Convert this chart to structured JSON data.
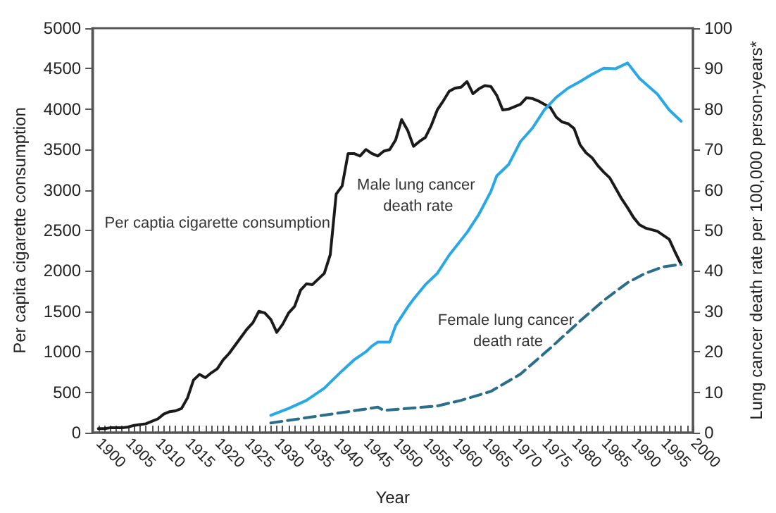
{
  "chart_data": {
    "type": "line",
    "xlabel": "Year",
    "ylabel": "Per capita cigarette consumption",
    "y2label": "Lung cancer death rate per 100,000 person-years*",
    "xlim": [
      1899,
      2000
    ],
    "xticks": [
      {
        "value": 1900,
        "label": "1900"
      },
      {
        "value": 1901,
        "label": null
      },
      {
        "value": 1902,
        "label": null
      },
      {
        "value": 1903,
        "label": null
      },
      {
        "value": 1904,
        "label": null
      },
      {
        "value": 1905,
        "label": "1905"
      },
      {
        "value": 1906,
        "label": null
      },
      {
        "value": 1907,
        "label": null
      },
      {
        "value": 1908,
        "label": null
      },
      {
        "value": 1909,
        "label": null
      },
      {
        "value": 1910,
        "label": "1910"
      },
      {
        "value": 1911,
        "label": null
      },
      {
        "value": 1912,
        "label": null
      },
      {
        "value": 1913,
        "label": null
      },
      {
        "value": 1914,
        "label": null
      },
      {
        "value": 1915,
        "label": "1915"
      },
      {
        "value": 1916,
        "label": null
      },
      {
        "value": 1917,
        "label": null
      },
      {
        "value": 1918,
        "label": null
      },
      {
        "value": 1919,
        "label": null
      },
      {
        "value": 1920,
        "label": "1920"
      },
      {
        "value": 1921,
        "label": null
      },
      {
        "value": 1922,
        "label": null
      },
      {
        "value": 1923,
        "label": null
      },
      {
        "value": 1924,
        "label": null
      },
      {
        "value": 1925,
        "label": "1925"
      },
      {
        "value": 1926,
        "label": null
      },
      {
        "value": 1927,
        "label": null
      },
      {
        "value": 1928,
        "label": null
      },
      {
        "value": 1929,
        "label": null
      },
      {
        "value": 1930,
        "label": "1930"
      },
      {
        "value": 1931,
        "label": null
      },
      {
        "value": 1932,
        "label": null
      },
      {
        "value": 1933,
        "label": null
      },
      {
        "value": 1934,
        "label": null
      },
      {
        "value": 1935,
        "label": "1935"
      },
      {
        "value": 1936,
        "label": null
      },
      {
        "value": 1937,
        "label": null
      },
      {
        "value": 1938,
        "label": null
      },
      {
        "value": 1939,
        "label": null
      },
      {
        "value": 1940,
        "label": "1940"
      },
      {
        "value": 1941,
        "label": null
      },
      {
        "value": 1942,
        "label": null
      },
      {
        "value": 1943,
        "label": null
      },
      {
        "value": 1944,
        "label": null
      },
      {
        "value": 1945,
        "label": "1945"
      },
      {
        "value": 1946,
        "label": null
      },
      {
        "value": 1947,
        "label": null
      },
      {
        "value": 1948,
        "label": null
      },
      {
        "value": 1949,
        "label": null
      },
      {
        "value": 1950,
        "label": "1950"
      },
      {
        "value": 1951,
        "label": null
      },
      {
        "value": 1952,
        "label": null
      },
      {
        "value": 1953,
        "label": null
      },
      {
        "value": 1954,
        "label": null
      },
      {
        "value": 1955,
        "label": "1955"
      },
      {
        "value": 1956,
        "label": null
      },
      {
        "value": 1957,
        "label": null
      },
      {
        "value": 1958,
        "label": null
      },
      {
        "value": 1959,
        "label": null
      },
      {
        "value": 1960,
        "label": "1960"
      },
      {
        "value": 1961,
        "label": null
      },
      {
        "value": 1962,
        "label": null
      },
      {
        "value": 1963,
        "label": null
      },
      {
        "value": 1964,
        "label": null
      },
      {
        "value": 1965,
        "label": "1965"
      },
      {
        "value": 1966,
        "label": null
      },
      {
        "value": 1967,
        "label": null
      },
      {
        "value": 1968,
        "label": null
      },
      {
        "value": 1969,
        "label": null
      },
      {
        "value": 1970,
        "label": "1970"
      },
      {
        "value": 1971,
        "label": null
      },
      {
        "value": 1972,
        "label": null
      },
      {
        "value": 1973,
        "label": null
      },
      {
        "value": 1974,
        "label": null
      },
      {
        "value": 1975,
        "label": "1975"
      },
      {
        "value": 1976,
        "label": null
      },
      {
        "value": 1977,
        "label": null
      },
      {
        "value": 1978,
        "label": null
      },
      {
        "value": 1979,
        "label": null
      },
      {
        "value": 1980,
        "label": "1980"
      },
      {
        "value": 1981,
        "label": null
      },
      {
        "value": 1982,
        "label": null
      },
      {
        "value": 1983,
        "label": null
      },
      {
        "value": 1984,
        "label": null
      },
      {
        "value": 1985,
        "label": "1985"
      },
      {
        "value": 1986,
        "label": null
      },
      {
        "value": 1987,
        "label": null
      },
      {
        "value": 1988,
        "label": null
      },
      {
        "value": 1989,
        "label": null
      },
      {
        "value": 1990,
        "label": "1990"
      },
      {
        "value": 1991,
        "label": null
      },
      {
        "value": 1992,
        "label": null
      },
      {
        "value": 1993,
        "label": null
      },
      {
        "value": 1994,
        "label": null
      },
      {
        "value": 1995,
        "label": "1995"
      },
      {
        "value": 1996,
        "label": null
      },
      {
        "value": 1997,
        "label": null
      },
      {
        "value": 1998,
        "label": null
      },
      {
        "value": 1999,
        "label": null
      },
      {
        "value": 2000,
        "label": "2000"
      }
    ],
    "ylim": [
      0,
      5000
    ],
    "yticks": [
      0,
      500,
      1000,
      1500,
      2000,
      2500,
      3000,
      3500,
      4000,
      4500,
      5000
    ],
    "y2lim": [
      0,
      100
    ],
    "y2ticks": [
      0,
      10,
      20,
      30,
      40,
      50,
      60,
      70,
      80,
      90,
      100
    ],
    "grid": false,
    "legend": false,
    "marker": "none",
    "series": [
      {
        "name": "Per captia cigarette consumption",
        "color": "#1a1a1a",
        "line_style": "solid",
        "x": [
          1900,
          1901,
          1902,
          1903,
          1904,
          1905,
          1906,
          1907,
          1908,
          1909,
          1910,
          1911,
          1912,
          1913,
          1914,
          1915,
          1916,
          1917,
          1918,
          1919,
          1920,
          1921,
          1922,
          1923,
          1924,
          1925,
          1926,
          1927,
          1928,
          1929,
          1930,
          1931,
          1932,
          1933,
          1934,
          1935,
          1936,
          1937,
          1938,
          1939,
          1940,
          1941,
          1942,
          1943,
          1944,
          1945,
          1946,
          1947,
          1948,
          1949,
          1950,
          1951,
          1952,
          1953,
          1954,
          1955,
          1956,
          1957,
          1958,
          1959,
          1960,
          1961,
          1962,
          1963,
          1964,
          1965,
          1966,
          1967,
          1968,
          1969,
          1970,
          1971,
          1972,
          1973,
          1974,
          1975,
          1976,
          1977,
          1978,
          1979,
          1980,
          1981,
          1982,
          1983,
          1984,
          1985,
          1986,
          1987,
          1988,
          1989,
          1990,
          1991,
          1992,
          1993,
          1994,
          1995,
          1996,
          1997,
          1998
        ],
        "values": [
          50,
          50,
          60,
          60,
          60,
          70,
          90,
          100,
          110,
          140,
          170,
          230,
          260,
          270,
          300,
          430,
          650,
          720,
          680,
          740,
          790,
          900,
          980,
          1080,
          1180,
          1280,
          1360,
          1500,
          1480,
          1400,
          1240,
          1340,
          1480,
          1560,
          1760,
          1840,
          1830,
          1900,
          1970,
          2200,
          2950,
          3050,
          3450,
          3450,
          3420,
          3500,
          3450,
          3420,
          3480,
          3500,
          3620,
          3870,
          3740,
          3540,
          3600,
          3650,
          3800,
          3990,
          4100,
          4220,
          4260,
          4270,
          4340,
          4190,
          4250,
          4290,
          4280,
          4170,
          3990,
          4000,
          4030,
          4060,
          4140,
          4130,
          4100,
          4060,
          4020,
          3900,
          3840,
          3820,
          3760,
          3560,
          3460,
          3400,
          3300,
          3220,
          3150,
          3020,
          2890,
          2780,
          2660,
          2570,
          2530,
          2510,
          2490,
          2440,
          2390,
          2230,
          2080
        ]
      },
      {
        "name": "Male lung cancer death rate",
        "color": "#29a8e8",
        "line_style": "solid",
        "axis": "y2",
        "x": [
          1929,
          1932,
          1935,
          1938,
          1941,
          1943,
          1945,
          1946,
          1947,
          1949,
          1950,
          1952,
          1953,
          1955,
          1957,
          1959,
          1962,
          1964,
          1966,
          1967,
          1969,
          1971,
          1973,
          1975,
          1977,
          1979,
          1981,
          1983,
          1985,
          1987,
          1989,
          1991,
          1994,
          1996,
          1998
        ],
        "values": [
          4.3,
          6,
          8,
          11,
          15.3,
          18,
          20,
          21.4,
          22.4,
          22.4,
          26.5,
          31,
          33,
          36.6,
          39.4,
          43.9,
          49.5,
          54,
          59.6,
          63.5,
          66.3,
          72,
          75.3,
          79.8,
          82.9,
          85.2,
          86.8,
          88.6,
          90.1,
          90,
          91.4,
          87.6,
          83.7,
          79.8,
          77
        ]
      },
      {
        "name": "Female lung cancer death rate",
        "color": "#2a6e8c",
        "line_style": "dashed",
        "axis": "y2",
        "x": [
          1929,
          1935,
          1942,
          1947,
          1948,
          1957,
          1961,
          1966,
          1971,
          1976,
          1981,
          1985,
          1989,
          1992,
          1995,
          1998
        ],
        "values": [
          2.4,
          3.7,
          5.2,
          6.3,
          5.5,
          6.6,
          8,
          10.2,
          14.5,
          20.9,
          27.6,
          32.7,
          37.1,
          39.4,
          41,
          41.6
        ]
      }
    ]
  }
}
